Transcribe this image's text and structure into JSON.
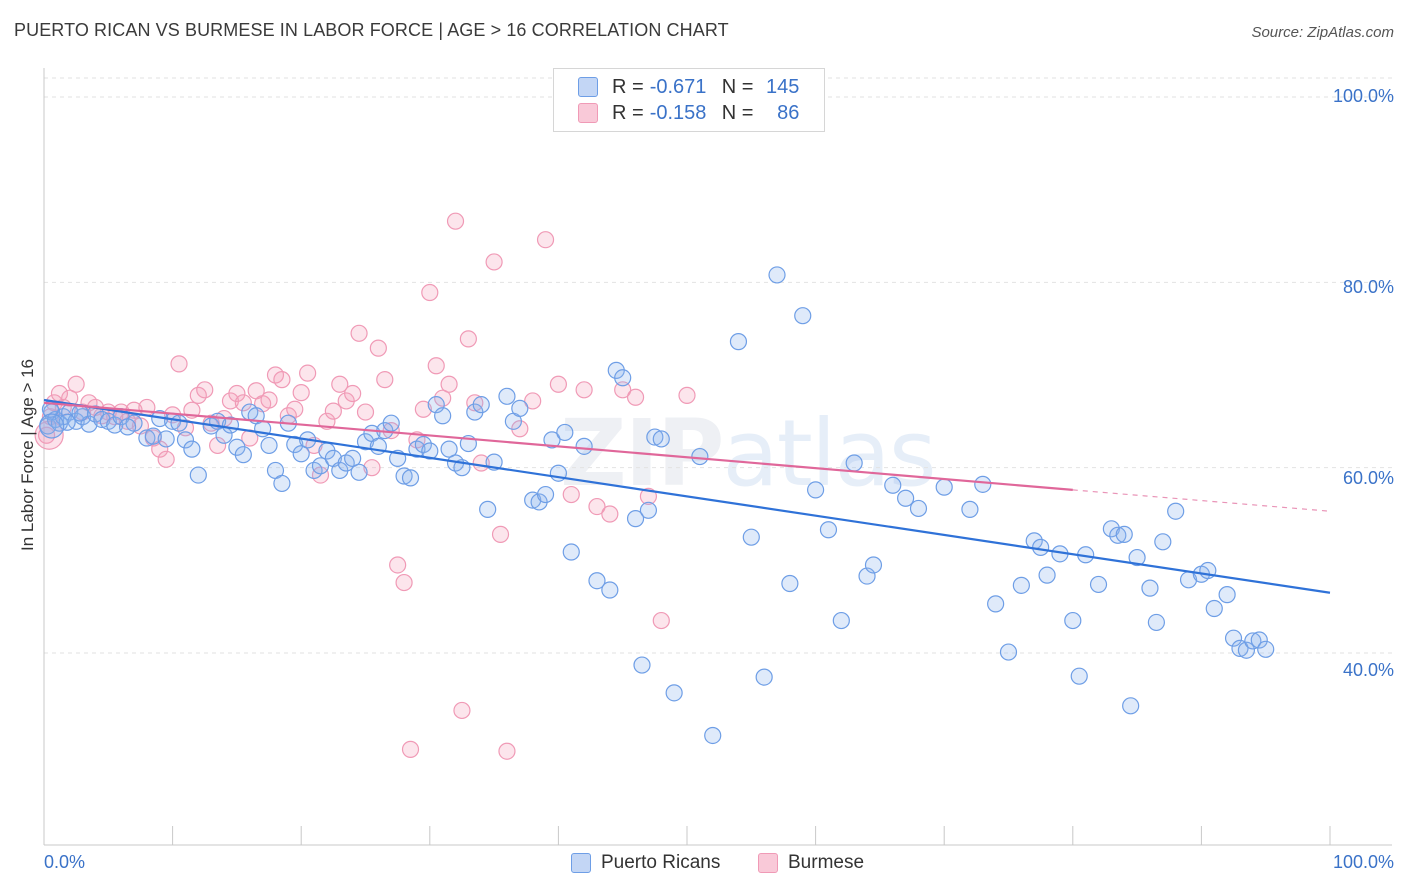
{
  "header": {
    "title": "PUERTO RICAN VS BURMESE IN LABOR FORCE | AGE > 16 CORRELATION CHART",
    "source": "Source: ZipAtlas.com"
  },
  "watermark": {
    "zip": "ZIP",
    "atlas": "atlas"
  },
  "legend_top": {
    "rows": [
      {
        "r_label": "R =",
        "r_value": "-0.671",
        "n_label": "N =",
        "n_value": "145"
      },
      {
        "r_label": "R =",
        "r_value": "-0.158",
        "n_label": "N =",
        "n_value": "86"
      }
    ]
  },
  "legend_bottom": {
    "items": [
      "Puerto Ricans",
      "Burmese"
    ]
  },
  "axes": {
    "ylabel": "In Labor Force | Age > 16",
    "y_ticks": [
      "100.0%",
      "80.0%",
      "60.0%",
      "40.0%"
    ],
    "x_ticks": [
      "0.0%",
      "100.0%"
    ]
  },
  "chart_data": {
    "type": "scatter",
    "title": "PUERTO RICAN VS BURMESE IN LABOR FORCE | AGE > 16 CORRELATION CHART",
    "xlabel": "",
    "ylabel": "In Labor Force | Age > 16",
    "xlim": [
      0,
      100
    ],
    "ylim": [
      20,
      100
    ],
    "y_ticks": [
      40,
      60,
      80,
      100
    ],
    "grid": true,
    "legend": "bottom",
    "colors": {
      "puerto_ricans": "#5b8fe0",
      "burmese": "#f08aaa",
      "blue_line": "#2f72d8",
      "pink_line": "#e0679a"
    },
    "series": [
      {
        "name": "Puerto Ricans",
        "r": -0.671,
        "n": 145,
        "trend": {
          "x": [
            0,
            100
          ],
          "y": [
            67.3,
            46.5
          ]
        },
        "points": [
          [
            0.3,
            64.5
          ],
          [
            0.6,
            66
          ],
          [
            0.9,
            65.2
          ],
          [
            1.2,
            64.8
          ],
          [
            1.5,
            65.5
          ],
          [
            2,
            66
          ],
          [
            2.5,
            65
          ],
          [
            3,
            65.5
          ],
          [
            3.5,
            64.7
          ],
          [
            4,
            65.8
          ],
          [
            4.5,
            65.2
          ],
          [
            5,
            65
          ],
          [
            5.5,
            64.6
          ],
          [
            6,
            65.5
          ],
          [
            7,
            64.8
          ],
          [
            8,
            63.2
          ],
          [
            8.5,
            63.4
          ],
          [
            9,
            65.3
          ],
          [
            10,
            65
          ],
          [
            10.5,
            64.8
          ],
          [
            11,
            63
          ],
          [
            11.5,
            62
          ],
          [
            12,
            59.2
          ],
          [
            13,
            64.5
          ],
          [
            13.5,
            65
          ],
          [
            14,
            63.5
          ],
          [
            14.5,
            64.6
          ],
          [
            15,
            62.2
          ],
          [
            15.5,
            61.4
          ],
          [
            16,
            66
          ],
          [
            16.5,
            65.6
          ],
          [
            17,
            64.2
          ],
          [
            17.5,
            62.4
          ],
          [
            18,
            59.7
          ],
          [
            18.5,
            58.3
          ],
          [
            19,
            64.8
          ],
          [
            19.5,
            62.5
          ],
          [
            20,
            61.5
          ],
          [
            20.5,
            63
          ],
          [
            21,
            59.7
          ],
          [
            21.5,
            60.2
          ],
          [
            22,
            61.8
          ],
          [
            22.5,
            61
          ],
          [
            23,
            59.7
          ],
          [
            23.5,
            60.5
          ],
          [
            24,
            61
          ],
          [
            24.5,
            59.5
          ],
          [
            25,
            62.8
          ],
          [
            25.5,
            63.7
          ],
          [
            26,
            62.3
          ],
          [
            26.5,
            64
          ],
          [
            27,
            64.8
          ],
          [
            27.5,
            61
          ],
          [
            28,
            59.1
          ],
          [
            28.5,
            58.9
          ],
          [
            29,
            62
          ],
          [
            29.5,
            62.5
          ],
          [
            30,
            61.8
          ],
          [
            30.5,
            66.8
          ],
          [
            31,
            65.6
          ],
          [
            31.5,
            62
          ],
          [
            32,
            60.5
          ],
          [
            32.5,
            60
          ],
          [
            33,
            62.6
          ],
          [
            33.5,
            66
          ],
          [
            34,
            66.8
          ],
          [
            34.5,
            55.5
          ],
          [
            35,
            60.6
          ],
          [
            36,
            67.7
          ],
          [
            36.5,
            65
          ],
          [
            37,
            66.4
          ],
          [
            38,
            56.5
          ],
          [
            38.5,
            56.3
          ],
          [
            39,
            57.1
          ],
          [
            39.5,
            63
          ],
          [
            40,
            59.4
          ],
          [
            40.5,
            63.8
          ],
          [
            41,
            50.9
          ],
          [
            42,
            62.3
          ],
          [
            43,
            47.8
          ],
          [
            44,
            46.8
          ],
          [
            44.5,
            70.5
          ],
          [
            45,
            69.7
          ],
          [
            46,
            54.5
          ],
          [
            46.5,
            38.7
          ],
          [
            47,
            55.4
          ],
          [
            47.5,
            63.3
          ],
          [
            48,
            63.1
          ],
          [
            49,
            35.7
          ],
          [
            51,
            61.2
          ],
          [
            52,
            31.1
          ],
          [
            54,
            73.6
          ],
          [
            55,
            52.5
          ],
          [
            56,
            37.4
          ],
          [
            57,
            80.8
          ],
          [
            58,
            47.5
          ],
          [
            59,
            76.4
          ],
          [
            60,
            57.6
          ],
          [
            61,
            53.3
          ],
          [
            62,
            43.5
          ],
          [
            63,
            60.5
          ],
          [
            64,
            48.3
          ],
          [
            64.5,
            49.5
          ],
          [
            66,
            58.1
          ],
          [
            67,
            56.7
          ],
          [
            68,
            55.6
          ],
          [
            70,
            57.9
          ],
          [
            72,
            55.5
          ],
          [
            73,
            58.2
          ],
          [
            74,
            45.3
          ],
          [
            75,
            40.1
          ],
          [
            76,
            47.3
          ],
          [
            77,
            52.1
          ],
          [
            77.5,
            51.4
          ],
          [
            78,
            48.4
          ],
          [
            79,
            50.7
          ],
          [
            80,
            43.5
          ],
          [
            80.5,
            37.5
          ],
          [
            81,
            50.6
          ],
          [
            82,
            47.4
          ],
          [
            83,
            53.4
          ],
          [
            83.5,
            52.7
          ],
          [
            84,
            52.8
          ],
          [
            84.5,
            34.3
          ],
          [
            85,
            50.3
          ],
          [
            86,
            47
          ],
          [
            86.5,
            43.3
          ],
          [
            87,
            52
          ],
          [
            88,
            55.3
          ],
          [
            89,
            47.9
          ],
          [
            90,
            48.5
          ],
          [
            90.5,
            48.9
          ],
          [
            91,
            44.8
          ],
          [
            92,
            46.3
          ],
          [
            92.5,
            41.6
          ],
          [
            93,
            40.5
          ],
          [
            93.5,
            40.3
          ],
          [
            94,
            41.3
          ],
          [
            94.5,
            41.4
          ],
          [
            95,
            40.4
          ],
          [
            0.5,
            66.3
          ],
          [
            1.8,
            64.9
          ],
          [
            2.8,
            65.9
          ],
          [
            6.5,
            64.4
          ],
          [
            9.5,
            63.1
          ]
        ]
      },
      {
        "name": "Burmese",
        "r": -0.158,
        "n": 86,
        "trend": {
          "x": [
            0,
            80
          ],
          "y": [
            67.0,
            57.6
          ]
        },
        "trend_dashed": {
          "x": [
            80,
            100
          ],
          "y": [
            57.6,
            55.3
          ]
        },
        "points": [
          [
            0.2,
            63.5
          ],
          [
            0.5,
            65.5
          ],
          [
            0.8,
            67
          ],
          [
            1.2,
            68
          ],
          [
            1.5,
            66.5
          ],
          [
            2,
            67.5
          ],
          [
            2.5,
            69
          ],
          [
            3,
            66
          ],
          [
            3.5,
            67
          ],
          [
            4,
            66.5
          ],
          [
            4.5,
            65.6
          ],
          [
            5,
            66
          ],
          [
            5.5,
            65.5
          ],
          [
            6,
            66
          ],
          [
            6.5,
            65
          ],
          [
            7,
            66.2
          ],
          [
            7.5,
            64.5
          ],
          [
            8,
            66.5
          ],
          [
            8.5,
            63.2
          ],
          [
            9,
            62
          ],
          [
            9.5,
            60.9
          ],
          [
            10,
            65.7
          ],
          [
            10.5,
            71.2
          ],
          [
            11,
            64.3
          ],
          [
            11.5,
            66.2
          ],
          [
            12,
            67.8
          ],
          [
            12.5,
            68.4
          ],
          [
            13,
            64.8
          ],
          [
            13.5,
            62.4
          ],
          [
            14,
            65.3
          ],
          [
            14.5,
            67.2
          ],
          [
            15,
            68
          ],
          [
            15.5,
            67
          ],
          [
            16,
            63.2
          ],
          [
            16.5,
            68.3
          ],
          [
            17,
            66.9
          ],
          [
            17.5,
            67.3
          ],
          [
            18,
            70
          ],
          [
            18.5,
            69.5
          ],
          [
            19,
            65.6
          ],
          [
            19.5,
            66.3
          ],
          [
            20,
            68.1
          ],
          [
            20.5,
            70.2
          ],
          [
            21,
            62.4
          ],
          [
            21.5,
            59.2
          ],
          [
            22,
            65
          ],
          [
            22.5,
            66.1
          ],
          [
            23,
            69
          ],
          [
            23.5,
            67.2
          ],
          [
            24,
            68
          ],
          [
            24.5,
            74.5
          ],
          [
            25,
            66
          ],
          [
            25.5,
            60
          ],
          [
            26,
            72.9
          ],
          [
            26.5,
            69.5
          ],
          [
            27,
            64
          ],
          [
            27.5,
            49.5
          ],
          [
            28,
            47.6
          ],
          [
            28.5,
            29.6
          ],
          [
            29,
            63
          ],
          [
            29.5,
            66.3
          ],
          [
            30,
            78.9
          ],
          [
            30.5,
            71
          ],
          [
            31,
            67.5
          ],
          [
            31.5,
            69
          ],
          [
            32,
            86.6
          ],
          [
            32.5,
            33.8
          ],
          [
            33,
            73.9
          ],
          [
            33.5,
            67
          ],
          [
            34,
            60.5
          ],
          [
            35,
            82.2
          ],
          [
            35.5,
            52.8
          ],
          [
            36,
            29.4
          ],
          [
            37,
            64.2
          ],
          [
            38,
            67.2
          ],
          [
            39,
            84.6
          ],
          [
            40,
            69
          ],
          [
            41,
            57.1
          ],
          [
            42,
            68.4
          ],
          [
            43,
            55.8
          ],
          [
            44,
            55
          ],
          [
            45,
            68.4
          ],
          [
            46,
            67.6
          ],
          [
            47,
            56.9
          ],
          [
            48,
            43.5
          ],
          [
            50,
            67.8
          ]
        ]
      }
    ]
  }
}
